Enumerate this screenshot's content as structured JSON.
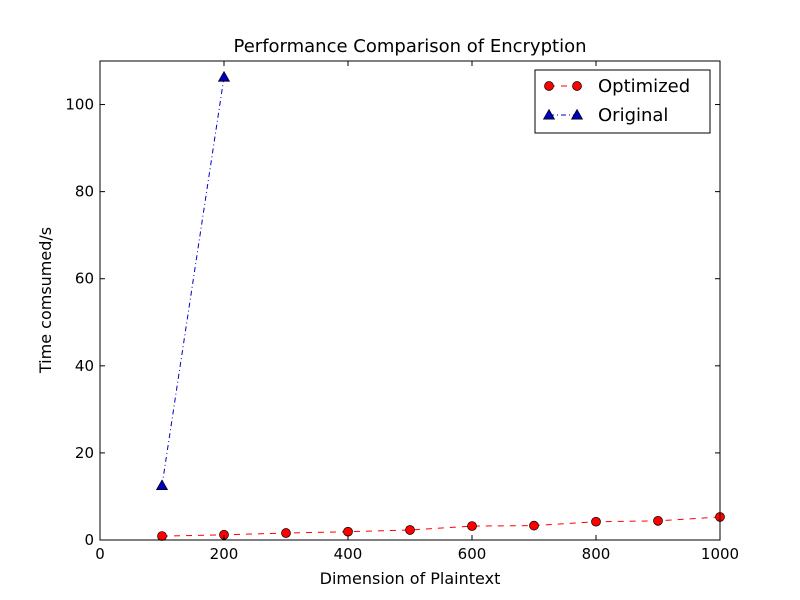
{
  "chart_data": {
    "type": "line",
    "title": "Performance Comparison of Encryption",
    "xlabel": "Dimension of Plaintext",
    "ylabel": "Time comsumed/s",
    "xlim": [
      0,
      1000
    ],
    "ylim": [
      0,
      110
    ],
    "xticks": [
      0,
      200,
      400,
      600,
      800,
      1000
    ],
    "yticks": [
      0,
      20,
      40,
      60,
      80,
      100
    ],
    "grid": false,
    "legend": "top-right",
    "series": [
      {
        "name": "Optimized",
        "color": "#ff0000",
        "marker": "circle",
        "linestyle": "dashed",
        "x": [
          100,
          200,
          300,
          400,
          500,
          600,
          700,
          800,
          900,
          1000
        ],
        "y": [
          0.9,
          1.2,
          1.6,
          1.9,
          2.3,
          3.2,
          3.3,
          4.2,
          4.4,
          5.3
        ]
      },
      {
        "name": "Original",
        "color": "#0000bf",
        "marker": "triangle",
        "linestyle": "dashdot",
        "x": [
          100,
          200
        ],
        "y": [
          12.5,
          106.3
        ]
      }
    ]
  }
}
